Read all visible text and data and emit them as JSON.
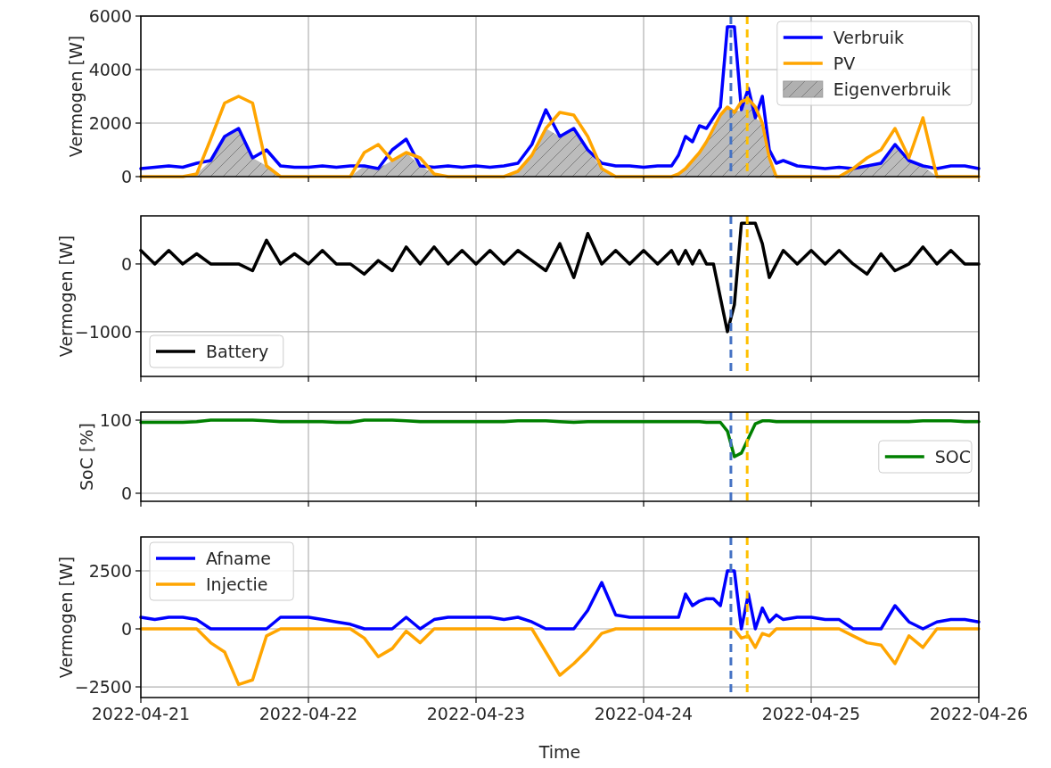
{
  "chart_data": [
    {
      "type": "line",
      "ylabel": "Vermogen [W]",
      "x": [
        "2022-04-21T00:00",
        "2022-04-21T02:00",
        "2022-04-21T04:00",
        "2022-04-21T06:00",
        "2022-04-21T08:00",
        "2022-04-21T10:00",
        "2022-04-21T12:00",
        "2022-04-21T14:00",
        "2022-04-21T16:00",
        "2022-04-21T18:00",
        "2022-04-21T20:00",
        "2022-04-21T22:00",
        "2022-04-22T00:00",
        "2022-04-22T02:00",
        "2022-04-22T04:00",
        "2022-04-22T06:00",
        "2022-04-22T08:00",
        "2022-04-22T10:00",
        "2022-04-22T12:00",
        "2022-04-22T14:00",
        "2022-04-22T16:00",
        "2022-04-22T18:00",
        "2022-04-22T20:00",
        "2022-04-22T22:00",
        "2022-04-23T00:00",
        "2022-04-23T02:00",
        "2022-04-23T04:00",
        "2022-04-23T06:00",
        "2022-04-23T08:00",
        "2022-04-23T10:00",
        "2022-04-23T12:00",
        "2022-04-23T14:00",
        "2022-04-23T16:00",
        "2022-04-23T18:00",
        "2022-04-23T20:00",
        "2022-04-23T22:00",
        "2022-04-24T00:00",
        "2022-04-24T02:00",
        "2022-04-24T04:00",
        "2022-04-24T05:00",
        "2022-04-24T06:00",
        "2022-04-24T07:00",
        "2022-04-24T08:00",
        "2022-04-24T09:00",
        "2022-04-24T10:00",
        "2022-04-24T11:00",
        "2022-04-24T12:00",
        "2022-04-24T13:00",
        "2022-04-24T14:00",
        "2022-04-24T15:00",
        "2022-04-24T16:00",
        "2022-04-24T17:00",
        "2022-04-24T18:00",
        "2022-04-24T19:00",
        "2022-04-24T20:00",
        "2022-04-24T22:00",
        "2022-04-25T00:00",
        "2022-04-25T02:00",
        "2022-04-25T04:00",
        "2022-04-25T06:00",
        "2022-04-25T08:00",
        "2022-04-25T10:00",
        "2022-04-25T12:00",
        "2022-04-25T14:00",
        "2022-04-25T16:00",
        "2022-04-25T18:00",
        "2022-04-25T20:00",
        "2022-04-25T22:00",
        "2022-04-26T00:00"
      ],
      "series": [
        {
          "name": "Verbruik",
          "color": "#0000ff",
          "values": [
            300,
            350,
            400,
            350,
            500,
            600,
            1500,
            1800,
            700,
            1000,
            400,
            350,
            350,
            400,
            350,
            400,
            400,
            300,
            1000,
            1400,
            400,
            350,
            400,
            350,
            400,
            350,
            400,
            500,
            1200,
            2500,
            1500,
            1800,
            1000,
            500,
            400,
            400,
            350,
            400,
            400,
            800,
            1500,
            1300,
            1900,
            1800,
            2200,
            2600,
            5600,
            5600,
            2500,
            3300,
            2200,
            3000,
            1000,
            500,
            600,
            400,
            350,
            300,
            350,
            300,
            400,
            500,
            1200,
            600,
            400,
            300,
            400,
            400,
            300
          ]
        },
        {
          "name": "PV",
          "color": "#ffa500",
          "values": [
            0,
            0,
            0,
            0,
            100,
            1400,
            2750,
            3000,
            2750,
            400,
            0,
            0,
            0,
            0,
            0,
            0,
            900,
            1200,
            600,
            900,
            700,
            100,
            0,
            0,
            0,
            0,
            0,
            200,
            800,
            1800,
            2400,
            2300,
            1500,
            300,
            0,
            0,
            0,
            0,
            0,
            100,
            300,
            600,
            900,
            1300,
            1800,
            2300,
            2600,
            2400,
            2800,
            2900,
            2600,
            2000,
            700,
            0,
            0,
            0,
            0,
            0,
            0,
            300,
            700,
            1000,
            1800,
            700,
            2200,
            0,
            0,
            0,
            0
          ]
        },
        {
          "name": "Eigenverbruik",
          "type": "area",
          "color": "#b0b0b0",
          "values": [
            0,
            0,
            0,
            0,
            100,
            600,
            1500,
            1800,
            700,
            400,
            0,
            0,
            0,
            0,
            0,
            0,
            400,
            300,
            600,
            900,
            400,
            100,
            0,
            0,
            0,
            0,
            0,
            200,
            800,
            1800,
            1500,
            1800,
            1000,
            300,
            0,
            0,
            0,
            0,
            0,
            100,
            300,
            600,
            900,
            1300,
            1800,
            2300,
            2600,
            2400,
            2500,
            2900,
            2200,
            2000,
            700,
            0,
            0,
            0,
            0,
            0,
            0,
            300,
            400,
            500,
            1200,
            600,
            400,
            0,
            0,
            0,
            0
          ]
        }
      ],
      "xlim": [
        "2022-04-21",
        "2022-04-26"
      ],
      "xticks": [
        "2022-04-21",
        "2022-04-22",
        "2022-04-23",
        "2022-04-24",
        "2022-04-25",
        "2022-04-26"
      ],
      "ylim": [
        0,
        6000
      ],
      "yticks": [
        0,
        2000,
        4000,
        6000
      ],
      "grid": true,
      "legend": "top right",
      "tick_labels": "y",
      "ref_lines": [
        {
          "axis": "x",
          "value": "2022-04-24T12:30",
          "color": "#4472c4",
          "line_style": "dashed"
        },
        {
          "axis": "x",
          "value": "2022-04-24T14:50",
          "color": "#ffc000",
          "line_style": "dashed"
        }
      ]
    },
    {
      "type": "line",
      "ylabel": "Vermogen [W]",
      "x": [
        "2022-04-21T00:00",
        "2022-04-21T02:00",
        "2022-04-21T04:00",
        "2022-04-21T06:00",
        "2022-04-21T08:00",
        "2022-04-21T10:00",
        "2022-04-21T12:00",
        "2022-04-21T14:00",
        "2022-04-21T16:00",
        "2022-04-21T18:00",
        "2022-04-21T20:00",
        "2022-04-21T22:00",
        "2022-04-22T00:00",
        "2022-04-22T02:00",
        "2022-04-22T04:00",
        "2022-04-22T06:00",
        "2022-04-22T08:00",
        "2022-04-22T10:00",
        "2022-04-22T12:00",
        "2022-04-22T14:00",
        "2022-04-22T16:00",
        "2022-04-22T18:00",
        "2022-04-22T20:00",
        "2022-04-22T22:00",
        "2022-04-23T00:00",
        "2022-04-23T02:00",
        "2022-04-23T04:00",
        "2022-04-23T06:00",
        "2022-04-23T08:00",
        "2022-04-23T10:00",
        "2022-04-23T12:00",
        "2022-04-23T14:00",
        "2022-04-23T16:00",
        "2022-04-23T18:00",
        "2022-04-23T20:00",
        "2022-04-23T22:00",
        "2022-04-24T00:00",
        "2022-04-24T02:00",
        "2022-04-24T04:00",
        "2022-04-24T05:00",
        "2022-04-24T06:00",
        "2022-04-24T07:00",
        "2022-04-24T08:00",
        "2022-04-24T09:00",
        "2022-04-24T10:00",
        "2022-04-24T11:00",
        "2022-04-24T12:00",
        "2022-04-24T13:00",
        "2022-04-24T14:00",
        "2022-04-24T15:00",
        "2022-04-24T16:00",
        "2022-04-24T17:00",
        "2022-04-24T18:00",
        "2022-04-24T19:00",
        "2022-04-24T20:00",
        "2022-04-24T22:00",
        "2022-04-25T00:00",
        "2022-04-25T02:00",
        "2022-04-25T04:00",
        "2022-04-25T06:00",
        "2022-04-25T08:00",
        "2022-04-25T10:00",
        "2022-04-25T12:00",
        "2022-04-25T14:00",
        "2022-04-25T16:00",
        "2022-04-25T18:00",
        "2022-04-25T20:00",
        "2022-04-25T22:00",
        "2022-04-26T00:00"
      ],
      "series": [
        {
          "name": "Battery",
          "color": "#000000",
          "values": [
            200,
            0,
            200,
            0,
            150,
            0,
            0,
            0,
            -100,
            350,
            0,
            150,
            0,
            200,
            0,
            0,
            -150,
            50,
            -100,
            250,
            0,
            250,
            0,
            200,
            0,
            200,
            0,
            200,
            50,
            -100,
            300,
            -200,
            450,
            0,
            200,
            0,
            200,
            0,
            200,
            0,
            200,
            0,
            200,
            0,
            0,
            -500,
            -1000,
            -600,
            600,
            600,
            600,
            300,
            -200,
            0,
            200,
            0,
            200,
            0,
            200,
            0,
            -150,
            150,
            -100,
            0,
            250,
            0,
            200,
            0,
            0
          ]
        }
      ],
      "xlim": [
        "2022-04-21",
        "2022-04-26"
      ],
      "xticks": [
        "2022-04-21",
        "2022-04-22",
        "2022-04-23",
        "2022-04-24",
        "2022-04-25",
        "2022-04-26"
      ],
      "ylim": [
        -1660,
        710
      ],
      "yticks": [
        {
          "value": -1000,
          "label": "−1000"
        },
        0
      ],
      "grid": true,
      "legend": "bottom left",
      "tick_labels": "y",
      "ref_lines": [
        {
          "axis": "x",
          "value": "2022-04-24T12:30",
          "color": "#4472c4",
          "line_style": "dashed"
        },
        {
          "axis": "x",
          "value": "2022-04-24T14:50",
          "color": "#ffc000",
          "line_style": "dashed"
        }
      ]
    },
    {
      "type": "line",
      "ylabel": "SoC [%]",
      "x": [
        "2022-04-21T00:00",
        "2022-04-21T02:00",
        "2022-04-21T04:00",
        "2022-04-21T06:00",
        "2022-04-21T08:00",
        "2022-04-21T10:00",
        "2022-04-21T12:00",
        "2022-04-21T14:00",
        "2022-04-21T16:00",
        "2022-04-21T18:00",
        "2022-04-21T20:00",
        "2022-04-21T22:00",
        "2022-04-22T00:00",
        "2022-04-22T02:00",
        "2022-04-22T04:00",
        "2022-04-22T06:00",
        "2022-04-22T08:00",
        "2022-04-22T10:00",
        "2022-04-22T12:00",
        "2022-04-22T14:00",
        "2022-04-22T16:00",
        "2022-04-22T18:00",
        "2022-04-22T20:00",
        "2022-04-22T22:00",
        "2022-04-23T00:00",
        "2022-04-23T02:00",
        "2022-04-23T04:00",
        "2022-04-23T06:00",
        "2022-04-23T08:00",
        "2022-04-23T10:00",
        "2022-04-23T12:00",
        "2022-04-23T14:00",
        "2022-04-23T16:00",
        "2022-04-23T18:00",
        "2022-04-23T20:00",
        "2022-04-23T22:00",
        "2022-04-24T00:00",
        "2022-04-24T02:00",
        "2022-04-24T04:00",
        "2022-04-24T05:00",
        "2022-04-24T06:00",
        "2022-04-24T07:00",
        "2022-04-24T08:00",
        "2022-04-24T09:00",
        "2022-04-24T10:00",
        "2022-04-24T11:00",
        "2022-04-24T12:00",
        "2022-04-24T13:00",
        "2022-04-24T14:00",
        "2022-04-24T15:00",
        "2022-04-24T16:00",
        "2022-04-24T17:00",
        "2022-04-24T18:00",
        "2022-04-24T19:00",
        "2022-04-24T20:00",
        "2022-04-24T22:00",
        "2022-04-25T00:00",
        "2022-04-25T02:00",
        "2022-04-25T04:00",
        "2022-04-25T06:00",
        "2022-04-25T08:00",
        "2022-04-25T10:00",
        "2022-04-25T12:00",
        "2022-04-25T14:00",
        "2022-04-25T16:00",
        "2022-04-25T18:00",
        "2022-04-25T20:00",
        "2022-04-25T22:00",
        "2022-04-26T00:00"
      ],
      "series": [
        {
          "name": "SOC",
          "color": "#008000",
          "values": [
            97,
            97,
            97,
            97,
            98,
            100,
            100,
            100,
            100,
            99,
            98,
            98,
            98,
            98,
            97,
            97,
            100,
            100,
            100,
            99,
            98,
            98,
            98,
            98,
            98,
            98,
            98,
            99,
            99,
            99,
            98,
            97,
            98,
            98,
            98,
            98,
            98,
            98,
            98,
            98,
            98,
            98,
            98,
            97,
            97,
            97,
            85,
            50,
            55,
            75,
            95,
            99,
            99,
            98,
            98,
            98,
            98,
            98,
            98,
            98,
            98,
            98,
            98,
            98,
            99,
            99,
            99,
            98,
            98
          ]
        }
      ],
      "xlim": [
        "2022-04-21",
        "2022-04-26"
      ],
      "xticks": [
        "2022-04-21",
        "2022-04-22",
        "2022-04-23",
        "2022-04-24",
        "2022-04-25",
        "2022-04-26"
      ],
      "ylim": [
        -11,
        111
      ],
      "yticks": [
        0,
        100
      ],
      "grid": true,
      "legend": "right",
      "tick_labels": "y",
      "ref_lines": [
        {
          "axis": "x",
          "value": "2022-04-24T12:30",
          "color": "#4472c4",
          "line_style": "dashed"
        },
        {
          "axis": "x",
          "value": "2022-04-24T14:50",
          "color": "#ffc000",
          "line_style": "dashed"
        }
      ]
    },
    {
      "type": "line",
      "ylabel": "Vermogen [W]",
      "xlabel": "Time",
      "x": [
        "2022-04-21T00:00",
        "2022-04-21T02:00",
        "2022-04-21T04:00",
        "2022-04-21T06:00",
        "2022-04-21T08:00",
        "2022-04-21T10:00",
        "2022-04-21T12:00",
        "2022-04-21T14:00",
        "2022-04-21T16:00",
        "2022-04-21T18:00",
        "2022-04-21T20:00",
        "2022-04-21T22:00",
        "2022-04-22T00:00",
        "2022-04-22T02:00",
        "2022-04-22T04:00",
        "2022-04-22T06:00",
        "2022-04-22T08:00",
        "2022-04-22T10:00",
        "2022-04-22T12:00",
        "2022-04-22T14:00",
        "2022-04-22T16:00",
        "2022-04-22T18:00",
        "2022-04-22T20:00",
        "2022-04-22T22:00",
        "2022-04-23T00:00",
        "2022-04-23T02:00",
        "2022-04-23T04:00",
        "2022-04-23T06:00",
        "2022-04-23T08:00",
        "2022-04-23T10:00",
        "2022-04-23T12:00",
        "2022-04-23T14:00",
        "2022-04-23T16:00",
        "2022-04-23T18:00",
        "2022-04-23T20:00",
        "2022-04-23T22:00",
        "2022-04-24T00:00",
        "2022-04-24T02:00",
        "2022-04-24T04:00",
        "2022-04-24T05:00",
        "2022-04-24T06:00",
        "2022-04-24T07:00",
        "2022-04-24T08:00",
        "2022-04-24T09:00",
        "2022-04-24T10:00",
        "2022-04-24T11:00",
        "2022-04-24T12:00",
        "2022-04-24T13:00",
        "2022-04-24T14:00",
        "2022-04-24T15:00",
        "2022-04-24T16:00",
        "2022-04-24T17:00",
        "2022-04-24T18:00",
        "2022-04-24T19:00",
        "2022-04-24T20:00",
        "2022-04-24T22:00",
        "2022-04-25T00:00",
        "2022-04-25T02:00",
        "2022-04-25T04:00",
        "2022-04-25T06:00",
        "2022-04-25T08:00",
        "2022-04-25T10:00",
        "2022-04-25T12:00",
        "2022-04-25T14:00",
        "2022-04-25T16:00",
        "2022-04-25T18:00",
        "2022-04-25T20:00",
        "2022-04-25T22:00",
        "2022-04-26T00:00"
      ],
      "series": [
        {
          "name": "Afname",
          "color": "#0000ff",
          "values": [
            500,
            400,
            500,
            500,
            400,
            0,
            0,
            0,
            0,
            0,
            500,
            500,
            500,
            400,
            300,
            200,
            0,
            0,
            0,
            500,
            0,
            400,
            500,
            500,
            500,
            500,
            400,
            500,
            300,
            0,
            0,
            0,
            800,
            2000,
            600,
            500,
            500,
            500,
            500,
            500,
            1500,
            1000,
            1200,
            1300,
            1300,
            1000,
            2500,
            2500,
            0,
            1500,
            0,
            900,
            300,
            600,
            400,
            500,
            500,
            400,
            400,
            0,
            0,
            0,
            1000,
            300,
            0,
            300,
            400,
            400,
            300
          ]
        },
        {
          "name": "Injectie",
          "color": "#ffa500",
          "values": [
            0,
            0,
            0,
            0,
            0,
            -600,
            -1000,
            -2400,
            -2200,
            -300,
            0,
            0,
            0,
            0,
            0,
            0,
            -400,
            -1200,
            -850,
            -100,
            -600,
            0,
            0,
            0,
            0,
            0,
            0,
            0,
            0,
            -1000,
            -2000,
            -1500,
            -900,
            -200,
            0,
            0,
            0,
            0,
            0,
            0,
            0,
            0,
            0,
            0,
            0,
            0,
            0,
            0,
            -400,
            -300,
            -800,
            -200,
            -300,
            0,
            0,
            0,
            0,
            0,
            0,
            -300,
            -600,
            -700,
            -1500,
            -300,
            -800,
            0,
            0,
            0,
            0
          ]
        }
      ],
      "xlim": [
        "2022-04-21",
        "2022-04-26"
      ],
      "xticks": [
        "2022-04-21",
        "2022-04-22",
        "2022-04-23",
        "2022-04-24",
        "2022-04-25",
        "2022-04-26"
      ],
      "ylim": [
        -2960,
        3960
      ],
      "yticks": [
        {
          "value": -2500,
          "label": "−2500"
        },
        0,
        2500
      ],
      "grid": true,
      "legend": "top left",
      "ref_lines": [
        {
          "axis": "x",
          "value": "2022-04-24T12:30",
          "color": "#4472c4",
          "line_style": "dashed"
        },
        {
          "axis": "x",
          "value": "2022-04-24T14:50",
          "color": "#ffc000",
          "line_style": "dashed"
        }
      ]
    }
  ]
}
